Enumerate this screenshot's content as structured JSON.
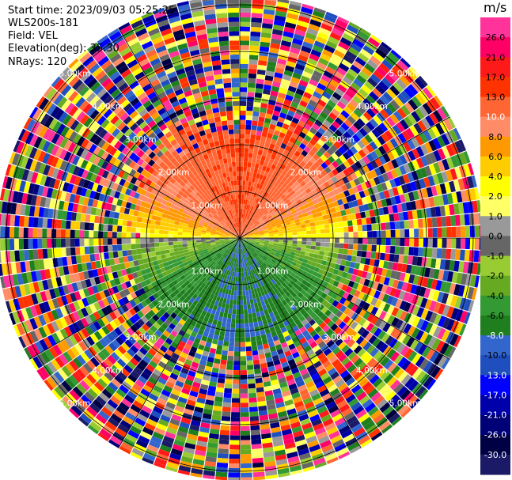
{
  "header": {
    "start_time": "Start time: 2023/09/03 05:25:25",
    "instrument": "WLS200s-181",
    "field": "Field: VEL",
    "elevation": "Elevation(deg): 35.30",
    "nrays": "NRays: 120"
  },
  "colorbar": {
    "title": "m/s",
    "ticks": [
      "26.0",
      "21.0",
      "17.0",
      "13.0",
      "10.0",
      "8.0",
      "6.0",
      "4.0",
      "2.0",
      "1.0",
      "0.0",
      "-1.0",
      "-2.0",
      "-4.0",
      "-6.0",
      "-8.0",
      "-10.0",
      "-13.0",
      "-17.0",
      "-21.0",
      "-26.0",
      "-30.0"
    ],
    "colors": [
      "#ff3399",
      "#ff0066",
      "#ff1a1a",
      "#ff3300",
      "#ff6633",
      "#ff8c66",
      "#ff9900",
      "#ffcc00",
      "#ffff00",
      "#ffff66",
      "#999999",
      "#666666",
      "#99cc33",
      "#66aa22",
      "#339933",
      "#1f7f1f",
      "#3366cc",
      "#1f4fbf",
      "#0000ff",
      "#0000aa",
      "#000077",
      "#000044",
      "#1a1a66"
    ],
    "text_colors": [
      "#000000",
      "#000000",
      "#000000",
      "#000000",
      "#ffffff",
      "#000000",
      "#000000",
      "#000000",
      "#000000",
      "#000000",
      "#000000",
      "#000000",
      "#000000",
      "#000000",
      "#000000",
      "#ffffff",
      "#000000",
      "#ffffff",
      "#ffffff",
      "#ffffff",
      "#ffffff",
      "#ffffff"
    ]
  },
  "chart_data": {
    "type": "ppi",
    "nrays": 120,
    "units": "m/s",
    "range_rings_km": [
      1.0,
      2.0,
      3.0,
      4.0,
      5.0
    ],
    "ring_labels": [
      "1.00km",
      "2.00km",
      "3.00km",
      "4.00km",
      "5.00km"
    ],
    "max_range_km": 5.2,
    "clean_radius_km": 2.1,
    "velocity_pattern": {
      "north_sector_mean": 13.0,
      "east_west_mean": 1.0,
      "south_sector_mean": -8.0
    }
  }
}
